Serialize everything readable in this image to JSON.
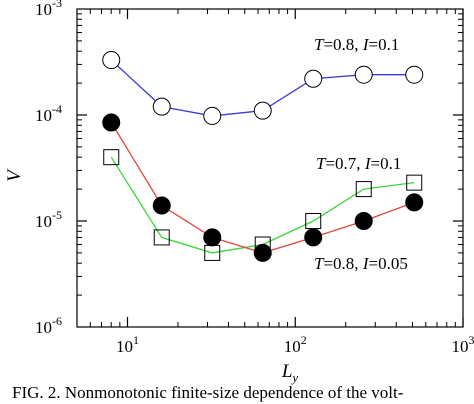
{
  "chart_data": {
    "type": "line",
    "xlabel": "L",
    "xlabel_sub": "y",
    "ylabel": "V",
    "xscale": "log",
    "yscale": "log",
    "xlim": [
      5,
      1000
    ],
    "ylim": [
      1e-06,
      0.001
    ],
    "grid": false,
    "x_ticks": [
      {
        "value": 10,
        "base": "10",
        "exp": "1"
      },
      {
        "value": 100,
        "base": "10",
        "exp": "2"
      },
      {
        "value": 1000,
        "base": "10",
        "exp": "3"
      }
    ],
    "y_ticks": [
      {
        "value": 1e-06,
        "base": "10",
        "exp": "-6"
      },
      {
        "value": 1e-05,
        "base": "10",
        "exp": "-5"
      },
      {
        "value": 0.0001,
        "base": "10",
        "exp": "-4"
      },
      {
        "value": 0.001,
        "base": "10",
        "exp": "-3"
      }
    ],
    "series": [
      {
        "name": "T=0.8, I=0.1",
        "marker": "open-circle",
        "line_color": "#3b3bd6",
        "x": [
          8,
          16,
          32,
          64,
          128,
          256,
          512
        ],
        "y": [
          0.00033,
          0.00012,
          9.8e-05,
          0.00011,
          0.00022,
          0.00024,
          0.00024
        ]
      },
      {
        "name": "T=0.7, I=0.1",
        "marker": "open-square",
        "line_color": "#39d639",
        "x": [
          8,
          16,
          32,
          64,
          128,
          256,
          512
        ],
        "y": [
          4e-05,
          7e-06,
          5e-06,
          6e-06,
          1e-05,
          2e-05,
          2.3e-05
        ]
      },
      {
        "name": "T=0.8, I=0.05",
        "marker": "filled-circle",
        "line_color": "#e0483c",
        "x": [
          8,
          16,
          32,
          64,
          128,
          256,
          512
        ],
        "y": [
          8.5e-05,
          1.4e-05,
          7e-06,
          5e-06,
          7e-06,
          1e-05,
          1.5e-05
        ]
      }
    ],
    "annotations": [
      {
        "series": 0,
        "T_label": "T",
        "T_value": "=0.8, ",
        "I_label": "I",
        "I_value": "=0.1"
      },
      {
        "series": 1,
        "T_label": "T",
        "T_value": "=0.7, ",
        "I_label": "I",
        "I_value": "=0.1"
      },
      {
        "series": 2,
        "T_label": "T",
        "T_value": "=0.8, ",
        "I_label": "I",
        "I_value": "=0.05"
      }
    ]
  },
  "caption": "FIG. 2. Nonmonotonic finite-size dependence of the volt-"
}
